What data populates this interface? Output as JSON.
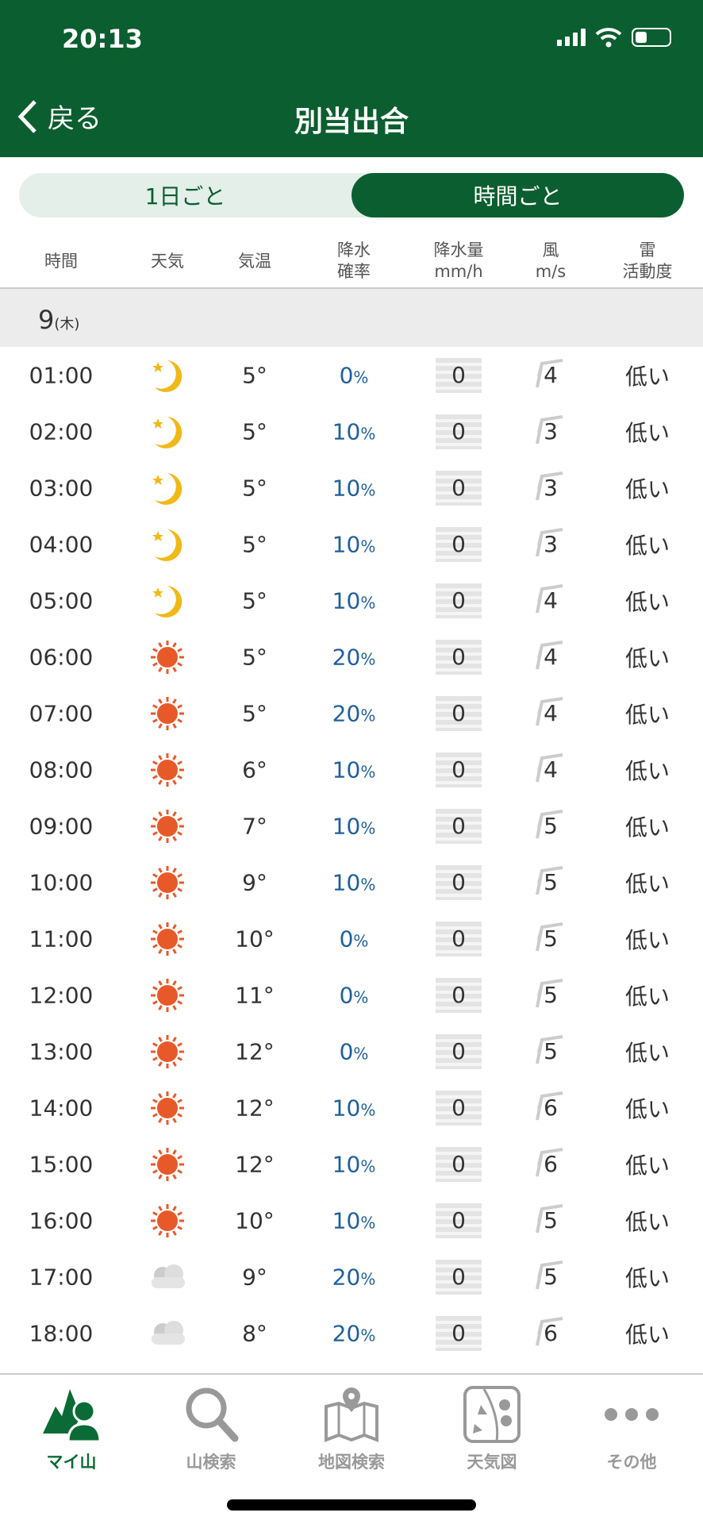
{
  "status_bar": {
    "time": "20:13"
  },
  "header": {
    "back_label": "戻る",
    "title": "別当出合"
  },
  "segment": {
    "daily": "1日ごと",
    "hourly": "時間ごと",
    "selected": "hourly"
  },
  "columns": {
    "time": "時間",
    "weather": "天気",
    "temp": "気温",
    "prob1": "降水",
    "prob2": "確率",
    "amount1": "降水量",
    "amount2": "mm/h",
    "wind1": "風",
    "wind2": "m/s",
    "thunder1": "雷",
    "thunder2": "活動度"
  },
  "day": {
    "date": "9",
    "weekday": "(木)"
  },
  "rows": [
    {
      "time": "01:00",
      "weather": "moon",
      "temp": "5°",
      "prob": "0",
      "rain": "0",
      "wind": "4",
      "thunder": "低い"
    },
    {
      "time": "02:00",
      "weather": "moon",
      "temp": "5°",
      "prob": "10",
      "rain": "0",
      "wind": "3",
      "thunder": "低い"
    },
    {
      "time": "03:00",
      "weather": "moon",
      "temp": "5°",
      "prob": "10",
      "rain": "0",
      "wind": "3",
      "thunder": "低い"
    },
    {
      "time": "04:00",
      "weather": "moon",
      "temp": "5°",
      "prob": "10",
      "rain": "0",
      "wind": "3",
      "thunder": "低い"
    },
    {
      "time": "05:00",
      "weather": "moon",
      "temp": "5°",
      "prob": "10",
      "rain": "0",
      "wind": "4",
      "thunder": "低い"
    },
    {
      "time": "06:00",
      "weather": "sun",
      "temp": "5°",
      "prob": "20",
      "rain": "0",
      "wind": "4",
      "thunder": "低い"
    },
    {
      "time": "07:00",
      "weather": "sun",
      "temp": "5°",
      "prob": "20",
      "rain": "0",
      "wind": "4",
      "thunder": "低い"
    },
    {
      "time": "08:00",
      "weather": "sun",
      "temp": "6°",
      "prob": "10",
      "rain": "0",
      "wind": "4",
      "thunder": "低い"
    },
    {
      "time": "09:00",
      "weather": "sun",
      "temp": "7°",
      "prob": "10",
      "rain": "0",
      "wind": "5",
      "thunder": "低い"
    },
    {
      "time": "10:00",
      "weather": "sun",
      "temp": "9°",
      "prob": "10",
      "rain": "0",
      "wind": "5",
      "thunder": "低い"
    },
    {
      "time": "11:00",
      "weather": "sun",
      "temp": "10°",
      "prob": "0",
      "rain": "0",
      "wind": "5",
      "thunder": "低い"
    },
    {
      "time": "12:00",
      "weather": "sun",
      "temp": "11°",
      "prob": "0",
      "rain": "0",
      "wind": "5",
      "thunder": "低い"
    },
    {
      "time": "13:00",
      "weather": "sun",
      "temp": "12°",
      "prob": "0",
      "rain": "0",
      "wind": "5",
      "thunder": "低い"
    },
    {
      "time": "14:00",
      "weather": "sun",
      "temp": "12°",
      "prob": "10",
      "rain": "0",
      "wind": "6",
      "thunder": "低い"
    },
    {
      "time": "15:00",
      "weather": "sun",
      "temp": "12°",
      "prob": "10",
      "rain": "0",
      "wind": "6",
      "thunder": "低い"
    },
    {
      "time": "16:00",
      "weather": "sun",
      "temp": "10°",
      "prob": "10",
      "rain": "0",
      "wind": "5",
      "thunder": "低い"
    },
    {
      "time": "17:00",
      "weather": "cloud",
      "temp": "9°",
      "prob": "20",
      "rain": "0",
      "wind": "5",
      "thunder": "低い"
    },
    {
      "time": "18:00",
      "weather": "cloud",
      "temp": "8°",
      "prob": "20",
      "rain": "0",
      "wind": "6",
      "thunder": "低い"
    }
  ],
  "percent_unit": "%",
  "tabs": [
    {
      "label": "マイ山",
      "icon": "my-mountain-icon",
      "active": true
    },
    {
      "label": "山検索",
      "icon": "search-icon"
    },
    {
      "label": "地図検索",
      "icon": "map-pin-icon"
    },
    {
      "label": "天気図",
      "icon": "weather-map-icon"
    },
    {
      "label": "その他",
      "icon": "more-icon"
    }
  ],
  "colors": {
    "brand_green": "#0b5e2f",
    "probability_blue": "#1e5f9e"
  }
}
